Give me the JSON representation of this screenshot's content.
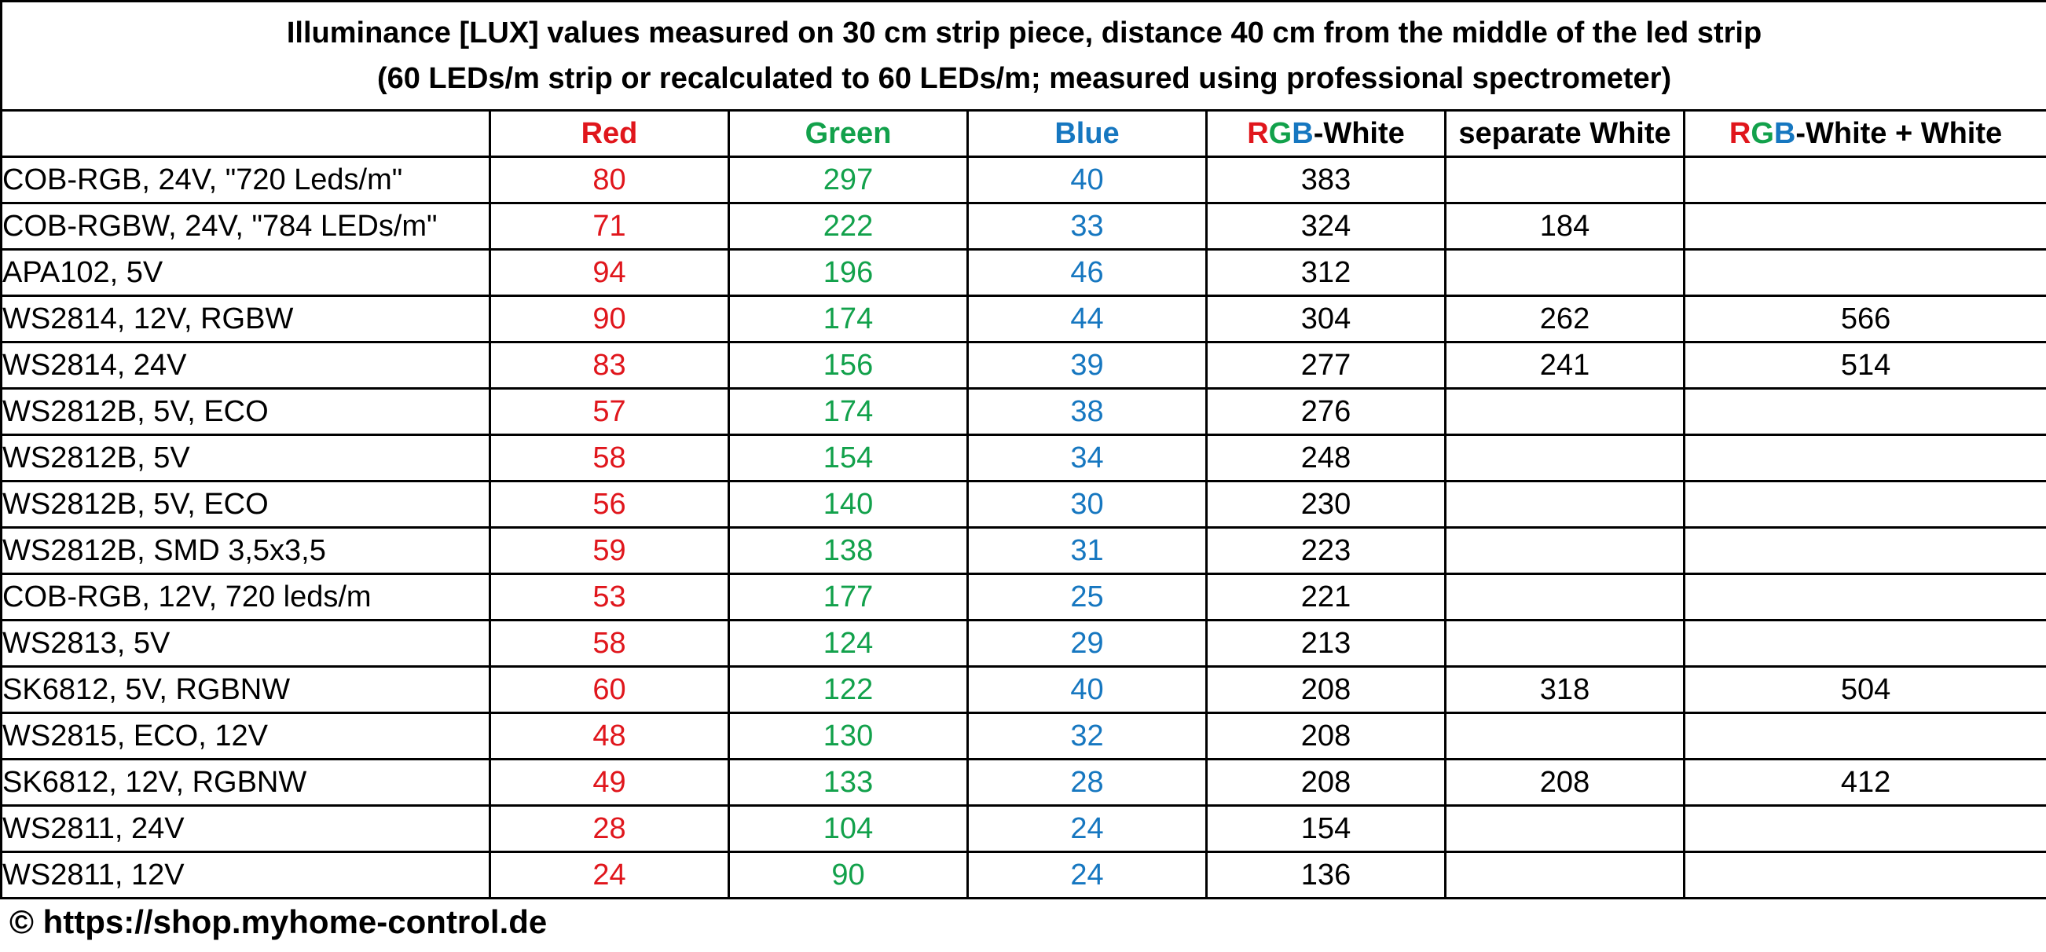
{
  "title_line1": "Illuminance [LUX] values measured on 30 cm strip piece, distance 40 cm from the middle of the led strip",
  "title_line2": "(60 LEDs/m strip or recalculated to 60 LEDs/m; measured using professional spectrometer)",
  "colors": {
    "red": "#e0161c",
    "green": "#12a14b",
    "blue": "#1677c0"
  },
  "headers": {
    "red": "Red",
    "green": "Green",
    "blue": "Blue",
    "rgbw_r": "R",
    "rgbw_g": "G",
    "rgbw_b": "B",
    "rgbw_suffix": "-White",
    "sep_white": "separate White",
    "rgbww_r": "R",
    "rgbww_g": "G",
    "rgbww_b": "B",
    "rgbww_suffix": "-White + White"
  },
  "chart_data": {
    "type": "table",
    "title": "Illuminance [LUX] values measured on 30 cm strip piece, distance 40 cm from the middle of the led strip",
    "subtitle": "(60 LEDs/m strip or recalculated to 60 LEDs/m; measured using professional spectrometer)",
    "columns": [
      "",
      "Red",
      "Green",
      "Blue",
      "RGB-White",
      "separate White",
      "RGB-White + White"
    ],
    "rows": [
      [
        "COB-RGB, 24V, \"720 Leds/m\"",
        "80",
        "297",
        "40",
        "383",
        "",
        ""
      ],
      [
        "COB-RGBW, 24V, \"784 LEDs/m\"",
        "71",
        "222",
        "33",
        "324",
        "184",
        ""
      ],
      [
        "APA102, 5V",
        "94",
        "196",
        "46",
        "312",
        "",
        ""
      ],
      [
        "WS2814, 12V, RGBW",
        "90",
        "174",
        "44",
        "304",
        "262",
        "566"
      ],
      [
        "WS2814, 24V",
        "83",
        "156",
        "39",
        "277",
        "241",
        "514"
      ],
      [
        "WS2812B, 5V, ECO",
        "57",
        "174",
        "38",
        "276",
        "",
        ""
      ],
      [
        "WS2812B, 5V",
        "58",
        "154",
        "34",
        "248",
        "",
        ""
      ],
      [
        "WS2812B, 5V, ECO",
        "56",
        "140",
        "30",
        "230",
        "",
        ""
      ],
      [
        "WS2812B, SMD 3,5x3,5",
        "59",
        "138",
        "31",
        "223",
        "",
        ""
      ],
      [
        "COB-RGB, 12V, 720 leds/m",
        "53",
        "177",
        "25",
        "221",
        "",
        ""
      ],
      [
        "WS2813, 5V",
        "58",
        "124",
        "29",
        "213",
        "",
        ""
      ],
      [
        "SK6812, 5V, RGBNW",
        "60",
        "122",
        "40",
        "208",
        "318",
        "504"
      ],
      [
        "WS2815, ECO, 12V",
        "48",
        "130",
        "32",
        "208",
        "",
        ""
      ],
      [
        "SK6812, 12V, RGBNW",
        "49",
        "133",
        "28",
        "208",
        "208",
        "412"
      ],
      [
        "WS2811, 24V",
        "28",
        "104",
        "24",
        "154",
        "",
        ""
      ],
      [
        "WS2811, 12V",
        "24",
        "90",
        "24",
        "136",
        "",
        ""
      ]
    ]
  },
  "footer": "© https://shop.myhome-control.de"
}
